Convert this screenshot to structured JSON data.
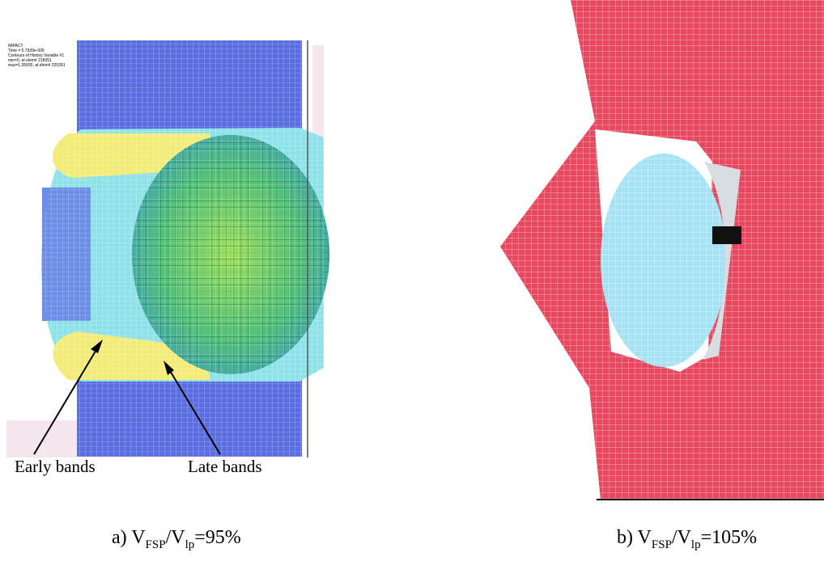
{
  "panel_a": {
    "header_lines": [
      "IMPACT",
      "Time = 5.7939e-005",
      "Contours of History Variable #1",
      "min=0, at elem# 218051",
      "max=1.35555, at elem# 225391"
    ],
    "annotations": [
      "Early bands",
      "Late bands"
    ],
    "caption": {
      "prefix": "a) V",
      "sub1": "FSP",
      "mid": "/V",
      "sub2": "lp",
      "tail": "=95%"
    }
  },
  "panel_b": {
    "caption": {
      "prefix": "b) V",
      "sub1": "FSP",
      "mid": "/V",
      "sub2": "lp",
      "tail": "=105%"
    }
  }
}
